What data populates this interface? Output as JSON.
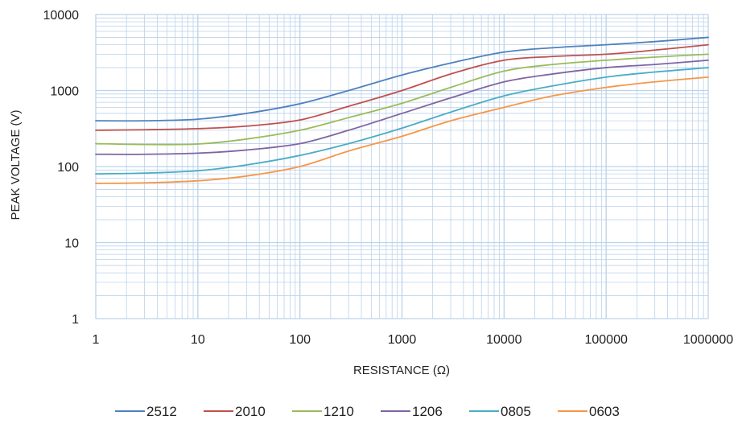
{
  "chart_data": {
    "type": "line",
    "title": "",
    "xlabel": "RESISTANCE (Ω)",
    "ylabel": "PEAK VOLTAGE (V)",
    "x_scale": "log",
    "y_scale": "log",
    "xlim": [
      1,
      1000000
    ],
    "ylim": [
      1,
      10000
    ],
    "x_ticks": [
      "1",
      "10",
      "100",
      "1000",
      "10000",
      "100000",
      "1000000"
    ],
    "y_ticks": [
      "1",
      "10",
      "100",
      "1000",
      "10000"
    ],
    "grid": true,
    "minor_grid": true,
    "legend_position": "bottom",
    "x": [
      1,
      3,
      10,
      30,
      100,
      300,
      1000,
      3000,
      10000,
      30000,
      100000,
      300000,
      1000000
    ],
    "series": [
      {
        "name": "2512",
        "color": "#4f81bd",
        "values": [
          400,
          400,
          420,
          500,
          670,
          1000,
          1600,
          2300,
          3200,
          3650,
          4000,
          4400,
          5000
        ]
      },
      {
        "name": "2010",
        "color": "#c0504d",
        "values": [
          300,
          305,
          315,
          340,
          410,
          620,
          1000,
          1650,
          2500,
          2800,
          3000,
          3400,
          4000
        ]
      },
      {
        "name": "1210",
        "color": "#9bbb59",
        "values": [
          200,
          195,
          198,
          230,
          300,
          440,
          680,
          1100,
          1800,
          2200,
          2500,
          2750,
          3000
        ]
      },
      {
        "name": "1206",
        "color": "#8064a2",
        "values": [
          145,
          145,
          150,
          165,
          200,
          300,
          500,
          800,
          1300,
          1650,
          2000,
          2200,
          2500
        ]
      },
      {
        "name": "0805",
        "color": "#4bacc6",
        "values": [
          80,
          82,
          88,
          105,
          140,
          200,
          320,
          520,
          850,
          1150,
          1500,
          1750,
          2000
        ]
      },
      {
        "name": "0603",
        "color": "#f79646",
        "values": [
          60,
          61,
          65,
          75,
          100,
          160,
          250,
          400,
          600,
          850,
          1100,
          1300,
          1500
        ]
      }
    ]
  },
  "colors": {
    "grid": "#bcd2ea",
    "plot_border": "#bcd2ea"
  }
}
